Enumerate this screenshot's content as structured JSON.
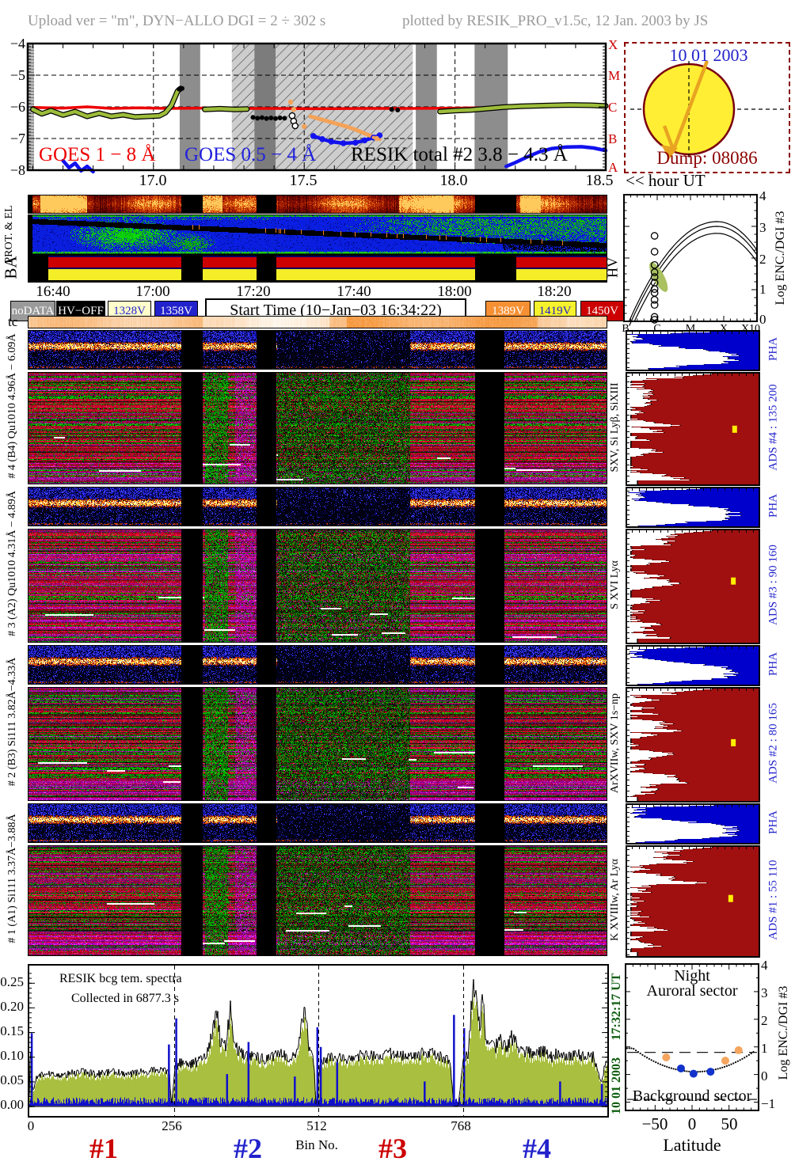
{
  "header": {
    "left": "Upload ver = \"m\", DYN−ALLO DGI =  2 ÷ 302 s",
    "right": "plotted by RESIK_PRO_v1.5c, 12 Jan. 2003 by JS"
  },
  "goes_plot": {
    "ylabels": [
      "−4",
      "−5",
      "−6",
      "−7",
      "−8"
    ],
    "right_letters": [
      "X",
      "M",
      "C",
      "B",
      "A"
    ],
    "xlabels": [
      "17.0",
      "17.5",
      "18.0",
      "18.5"
    ],
    "axis_suffix": "<< hour UT",
    "series_labels": {
      "goes_low": "GOES 1 − 8 Å",
      "goes_high": "GOES 0.5 − 4 Å",
      "resik": "RESIK total #2  3.8 − 4.3 Å"
    }
  },
  "sun_panel": {
    "date": "10 01 2003",
    "dump": "Dump: 08086"
  },
  "enc_plot": {
    "xlabels": [
      "B",
      "C",
      "M",
      "X",
      "X10"
    ],
    "yticks": [
      "4",
      "3",
      "2",
      "1",
      "0"
    ],
    "ylabel": "Log ENC./DGI #3"
  },
  "strips": {
    "prot_label": "PROT. & EL",
    "ba_label": "BA",
    "hv_label": "HV",
    "time_labels": [
      "16:40",
      "17:00",
      "17:20",
      "17:40",
      "18:00",
      "18:20"
    ]
  },
  "legend": {
    "items": [
      {
        "label": "noDATA",
        "bg": "#9a9a9a",
        "fg": "#ffffff"
      },
      {
        "label": "HV−OFF",
        "bg": "#000000",
        "fg": "#ffffff"
      },
      {
        "label": "1328V",
        "bg": "#ffffcc",
        "fg": "#2222cc"
      },
      {
        "label": "1358V",
        "bg": "#2222cc",
        "fg": "#ffffff"
      },
      {
        "label": "1389V",
        "bg": "#f79033",
        "fg": "#ffffff"
      },
      {
        "label": "1419V",
        "bg": "#f6f22c",
        "fg": "#2222cc"
      },
      {
        "label": "1450V",
        "bg": "#cc0000",
        "fg": "#ffffff"
      }
    ],
    "start_time": "Start Time (10−Jan−03 16:34:22)"
  },
  "tc_label": "tc",
  "channels": [
    {
      "left_label": "# 4 (B4) Qu1010 4.96Å − 6.09Å",
      "right_label": "SXV, Si Lyβ, SiXIII",
      "pha_label": "PHA",
      "ads_label": "ADS #4 :  135 200"
    },
    {
      "left_label": "# 3 (A2) Qu1010 4.31Å − 4.89Å",
      "right_label": "S XVI Lyα",
      "pha_label": "PHA",
      "ads_label": "ADS #3 :  90 160"
    },
    {
      "left_label": "# 2 (B3) Si111 3.82Å−4.33Å",
      "right_label": "ArXVIIw, SXV 1s−np",
      "pha_label": "PHA",
      "ads_label": "ADS #2 :  80 165"
    },
    {
      "left_label": "# 1 (A1) Si111 3.37Å−3.88Å",
      "right_label": "K XVIIIw, Ar Lyα",
      "pha_label": "PHA",
      "ads_label": "ADS #1 :  55 110"
    }
  ],
  "bottom_plot": {
    "title": "RESIK bcg tem. spectra",
    "subtitle": "Collected in  6877.3 s",
    "yticks": [
      "0.25",
      "0.20",
      "0.15",
      "0.10",
      "0.05",
      "0.00"
    ],
    "xticks": [
      "0",
      "256",
      "512",
      "768"
    ],
    "xlabel": "Bin No.",
    "sections": [
      {
        "label": "#1",
        "color": "#cc0000"
      },
      {
        "label": "#2",
        "color": "#2222cc"
      },
      {
        "label": "#3",
        "color": "#cc0000"
      },
      {
        "label": "#4",
        "color": "#2222cc"
      }
    ]
  },
  "side_dates": {
    "time": "17:32:17 UT",
    "date": "10 01 2003"
  },
  "lat_panel": {
    "title1": "Night",
    "title2": "Auroral sector",
    "bottom_label": "Background sector",
    "xticks": [
      "−50",
      "0",
      "50"
    ],
    "xlabel": "Latitude",
    "yticks": [
      "4",
      "3",
      "2",
      "1",
      "0",
      "−1"
    ],
    "ylabel": "Log ENC./DGI #3"
  },
  "spectrogram_meta": {
    "gap_fractions": [
      [
        0.264,
        0.3
      ],
      [
        0.394,
        0.428
      ],
      [
        0.772,
        0.822
      ]
    ],
    "strip_gap_fractions": [
      [
        0.264,
        0.3
      ],
      [
        0.394,
        0.428
      ],
      [
        0.772,
        0.843
      ]
    ],
    "quiet_zone": [
      0.43,
      0.66
    ]
  },
  "chart_data": [
    {
      "id": "goes_lightcurves",
      "type": "line",
      "xlabel": "hour UT",
      "xrange": [
        16.583,
        18.5
      ],
      "yrange": [
        -8,
        -4
      ],
      "gridlines_y": [
        -5,
        -6,
        -7
      ],
      "gridlines_x": [
        17.0,
        17.5,
        18.0
      ],
      "bands_gray": [
        [
          17.087,
          17.155
        ],
        [
          17.335,
          17.405
        ],
        [
          17.87,
          17.94
        ],
        [
          18.065,
          18.175
        ]
      ],
      "band_hatched": [
        17.26,
        17.86
      ],
      "series": [
        {
          "name": "GOES 1 − 8 Å",
          "color": "#ee0000",
          "width": 3.5,
          "segments": [
            [
              [
                16.6,
                -6.02
              ],
              [
                16.7,
                -6.04
              ],
              [
                16.78,
                -6.0
              ],
              [
                16.86,
                -6.05
              ],
              [
                16.95,
                -6.03
              ],
              [
                17.05,
                -6.05
              ],
              [
                17.15,
                -6.04
              ],
              [
                17.25,
                -6.05
              ],
              [
                17.4,
                -6.05
              ],
              [
                17.55,
                -6.06
              ],
              [
                17.7,
                -6.05
              ],
              [
                17.85,
                -6.05
              ],
              [
                18.0,
                -6.04
              ],
              [
                18.15,
                -6.02
              ],
              [
                18.3,
                -5.99
              ],
              [
                18.42,
                -5.96
              ],
              [
                18.5,
                -5.97
              ]
            ]
          ]
        },
        {
          "name": "RESIK total #2 3.8 − 4.3 Å",
          "color": "#9dbd3a",
          "width": 4.5,
          "outline": "#000000",
          "segments": [
            [
              [
                16.6,
                -6.08
              ],
              [
                16.63,
                -6.22
              ],
              [
                16.66,
                -6.12
              ],
              [
                16.7,
                -6.26
              ],
              [
                16.74,
                -6.15
              ],
              [
                16.78,
                -6.3
              ],
              [
                16.82,
                -6.2
              ],
              [
                16.86,
                -6.3
              ],
              [
                16.9,
                -6.25
              ],
              [
                16.94,
                -6.32
              ],
              [
                16.98,
                -6.3
              ],
              [
                17.02,
                -6.28
              ],
              [
                17.04,
                -6.18
              ],
              [
                17.06,
                -5.95
              ],
              [
                17.08,
                -5.5
              ],
              [
                17.09,
                -5.42
              ]
            ],
            [
              [
                17.17,
                -6.08
              ],
              [
                17.22,
                -6.06
              ],
              [
                17.27,
                -6.08
              ],
              [
                17.31,
                -6.07
              ]
            ],
            [
              [
                17.95,
                -6.15
              ],
              [
                18.0,
                -6.12
              ],
              [
                18.05,
                -6.1
              ],
              [
                18.1,
                -6.06
              ],
              [
                18.16,
                -6.01
              ],
              [
                18.22,
                -5.98
              ],
              [
                18.3,
                -5.96
              ],
              [
                18.38,
                -5.94
              ],
              [
                18.45,
                -5.95
              ],
              [
                18.5,
                -5.97
              ]
            ]
          ]
        },
        {
          "name": "GOES 0.5 − 4 Å",
          "color": "#1111ee",
          "width": 4.5,
          "segments": [
            [
              [
                16.7,
                -7.7
              ],
              [
                16.72,
                -7.92
              ],
              [
                16.74,
                -7.78
              ],
              [
                16.76,
                -8.02
              ],
              [
                16.78,
                -7.88
              ],
              [
                16.8,
                -8.05
              ]
            ],
            [
              [
                17.53,
                -6.92
              ],
              [
                17.56,
                -7.02
              ],
              [
                17.59,
                -7.1
              ],
              [
                17.63,
                -7.15
              ],
              [
                17.67,
                -7.13
              ],
              [
                17.7,
                -7.06
              ],
              [
                17.73,
                -6.97
              ],
              [
                17.75,
                -6.9
              ]
            ],
            [
              [
                18.17,
                -7.88
              ],
              [
                18.2,
                -7.76
              ],
              [
                18.24,
                -7.58
              ],
              [
                18.28,
                -7.42
              ],
              [
                18.32,
                -7.32
              ],
              [
                18.37,
                -7.27
              ],
              [
                18.42,
                -7.26
              ],
              [
                18.46,
                -7.3
              ],
              [
                18.5,
                -7.38
              ]
            ]
          ]
        },
        {
          "name": "orange detector segment",
          "color": "#f4a258",
          "width": 5,
          "segments": [
            [
              [
                17.52,
                -6.3
              ],
              [
                17.55,
                -6.38
              ],
              [
                17.58,
                -6.46
              ],
              [
                17.61,
                -6.54
              ],
              [
                17.64,
                -6.62
              ],
              [
                17.67,
                -6.72
              ],
              [
                17.7,
                -6.84
              ],
              [
                17.73,
                -6.95
              ],
              [
                17.75,
                -7.02
              ]
            ]
          ]
        }
      ],
      "black_points": [
        [
          17.085,
          -5.44
        ],
        [
          17.095,
          -5.42
        ],
        [
          17.33,
          -6.33
        ],
        [
          17.345,
          -6.36
        ],
        [
          17.36,
          -6.34
        ],
        [
          17.375,
          -6.37
        ],
        [
          17.39,
          -6.35
        ],
        [
          17.405,
          -6.37
        ],
        [
          17.42,
          -6.35
        ],
        [
          17.435,
          -6.36
        ],
        [
          17.79,
          -6.08
        ],
        [
          17.81,
          -6.1
        ]
      ],
      "open_circles": [
        [
          17.46,
          -6.28
        ],
        [
          17.465,
          -6.45
        ],
        [
          17.47,
          -6.6
        ]
      ],
      "orange_points": [
        [
          17.455,
          -5.85
        ],
        [
          17.465,
          -6.08
        ],
        [
          17.5,
          -6.62
        ],
        [
          17.74,
          -7.0
        ]
      ]
    },
    {
      "id": "enc_vs_goes_class",
      "type": "scatter",
      "x_class_labels": [
        "B",
        "C",
        "M",
        "X",
        "X10"
      ],
      "yrange": [
        0,
        4
      ],
      "circles_x_fraction": 0.23,
      "circles_log_enc": [
        2.7,
        2.2,
        1.78,
        1.55,
        1.4,
        1.22,
        1.02,
        0.9,
        0.68,
        0.52,
        0.14,
        0.05
      ],
      "curve_peaks": [
        3.15,
        3.0,
        2.78
      ],
      "curve_peak_x_fraction": 0.7,
      "green_blob": {
        "x_fraction": 0.26,
        "log_enc": 1.4,
        "color": "#a9c160"
      }
    },
    {
      "id": "bin_spectrum",
      "type": "area",
      "xlabel": "Bin No.",
      "xrange": [
        0,
        1024
      ],
      "yrange": [
        -0.02,
        0.285
      ],
      "section_boundaries": [
        256,
        512,
        768
      ],
      "envelope_control_points": [
        [
          0,
          0.02
        ],
        [
          2,
          0.13
        ],
        [
          6,
          0.03
        ],
        [
          12,
          0.055
        ],
        [
          30,
          0.068
        ],
        [
          60,
          0.062
        ],
        [
          90,
          0.07
        ],
        [
          120,
          0.065
        ],
        [
          150,
          0.07
        ],
        [
          180,
          0.066
        ],
        [
          210,
          0.07
        ],
        [
          235,
          0.072
        ],
        [
          248,
          0.068
        ],
        [
          252,
          0
        ],
        [
          258,
          0.08
        ],
        [
          270,
          0.09
        ],
        [
          285,
          0.085
        ],
        [
          300,
          0.09
        ],
        [
          315,
          0.11
        ],
        [
          325,
          0.15
        ],
        [
          333,
          0.195
        ],
        [
          338,
          0.13
        ],
        [
          348,
          0.12
        ],
        [
          356,
          0.195
        ],
        [
          362,
          0.14
        ],
        [
          372,
          0.11
        ],
        [
          385,
          0.1
        ],
        [
          400,
          0.1
        ],
        [
          415,
          0.095
        ],
        [
          430,
          0.1
        ],
        [
          445,
          0.105
        ],
        [
          460,
          0.1
        ],
        [
          475,
          0.105
        ],
        [
          488,
          0.207
        ],
        [
          495,
          0.12
        ],
        [
          504,
          0.09
        ],
        [
          508,
          0
        ],
        [
          515,
          0.085
        ],
        [
          525,
          0.095
        ],
        [
          540,
          0.1
        ],
        [
          560,
          0.095
        ],
        [
          580,
          0.1
        ],
        [
          600,
          0.105
        ],
        [
          620,
          0.1
        ],
        [
          640,
          0.108
        ],
        [
          655,
          0.1
        ],
        [
          670,
          0.105
        ],
        [
          685,
          0.1
        ],
        [
          700,
          0.11
        ],
        [
          715,
          0.105
        ],
        [
          730,
          0.1
        ],
        [
          745,
          0.095
        ],
        [
          752,
          0
        ],
        [
          760,
          0
        ],
        [
          768,
          0.09
        ],
        [
          778,
          0.11
        ],
        [
          786,
          0.25
        ],
        [
          792,
          0.205
        ],
        [
          798,
          0.16
        ],
        [
          803,
          0.225
        ],
        [
          808,
          0.15
        ],
        [
          815,
          0.125
        ],
        [
          825,
          0.12
        ],
        [
          835,
          0.135
        ],
        [
          845,
          0.115
        ],
        [
          855,
          0.14
        ],
        [
          868,
          0.115
        ],
        [
          880,
          0.11
        ],
        [
          895,
          0.105
        ],
        [
          910,
          0.115
        ],
        [
          925,
          0.1
        ],
        [
          940,
          0.11
        ],
        [
          955,
          0.1
        ],
        [
          970,
          0.105
        ],
        [
          985,
          0.1
        ],
        [
          1000,
          0.1
        ],
        [
          1012,
          0.05
        ],
        [
          1023,
          0.09
        ]
      ],
      "blue_spikes": [
        [
          4,
          0.148
        ],
        [
          247,
          0.125
        ],
        [
          260,
          0.178
        ],
        [
          350,
          0.065
        ],
        [
          388,
          0.13
        ],
        [
          470,
          0.06
        ],
        [
          510,
          0.16
        ],
        [
          516,
          0.12
        ],
        [
          545,
          0.09
        ],
        [
          700,
          0.05
        ],
        [
          752,
          0.185
        ],
        [
          770,
          0.158
        ],
        [
          940,
          0.05
        ],
        [
          1014,
          0.045
        ]
      ]
    },
    {
      "id": "latitude_activity",
      "type": "scatter",
      "xlabel": "Latitude",
      "xrange": [
        -90,
        90
      ],
      "yrange": [
        -1.3,
        4
      ],
      "orange_points": [
        [
          -35,
          0.62
        ],
        [
          45,
          0.5
        ],
        [
          63,
          0.88
        ]
      ],
      "blue_points": [
        [
          -15,
          0.22
        ],
        [
          2,
          0.03
        ],
        [
          25,
          0.1
        ]
      ],
      "dashed_levels": [
        0.8,
        -0.9
      ],
      "dotted_curve_min": [
        5,
        0.1
      ]
    }
  ]
}
